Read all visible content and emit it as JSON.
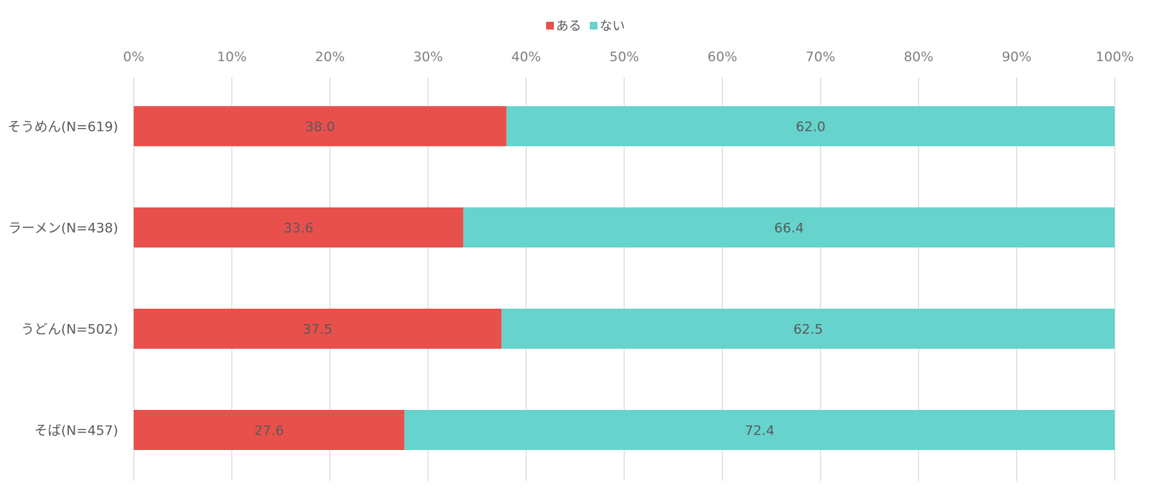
{
  "chart_data": {
    "type": "bar",
    "orientation": "horizontal",
    "stacked": "percent",
    "categories": [
      "そうめん(N=619)",
      "ラーメン(N=438)",
      "うどん(N=502)",
      "そば(N=457)"
    ],
    "series": [
      {
        "name": "ある",
        "values": [
          38.0,
          33.6,
          37.5,
          27.6
        ],
        "labels": [
          "38.0",
          "33.6",
          "37.5",
          "27.6"
        ],
        "color": "#e8504c"
      },
      {
        "name": "ない",
        "values": [
          62.0,
          66.4,
          62.5,
          72.4
        ],
        "labels": [
          "62.0",
          "66.4",
          "62.5",
          "72.4"
        ],
        "color": "#66d4cd"
      }
    ],
    "x_ticks": [
      "0%",
      "10%",
      "20%",
      "30%",
      "40%",
      "50%",
      "60%",
      "70%",
      "80%",
      "90%",
      "100%"
    ],
    "xlim": [
      0,
      100
    ],
    "x_axis_position": "top",
    "grid": true,
    "legend_position": "top-center"
  }
}
